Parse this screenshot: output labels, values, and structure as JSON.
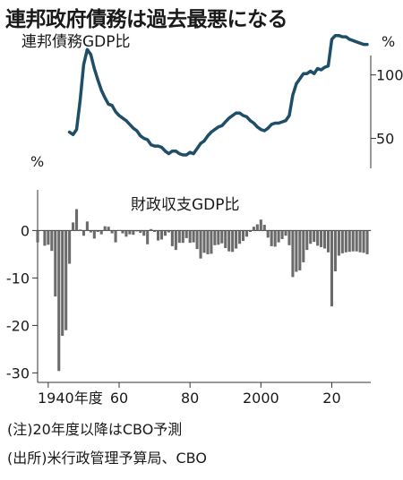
{
  "headline": "連邦政府債務は過去最悪になる",
  "notes": {
    "forecast": "(注)20年度以降はCBO予測",
    "source": "(出所)米行政管理予算局、CBO"
  },
  "colors": {
    "debt_line": "#1e4e68",
    "bars": "#6b6b6b",
    "axis": "#333333"
  },
  "chart_data": [
    {
      "type": "line",
      "title": "連邦債務GDP比",
      "ylabel": "%",
      "ylim": [
        25,
        135
      ],
      "yticks": [
        50,
        100
      ],
      "xlim": [
        1937,
        2031
      ],
      "grid": false,
      "series": [
        {
          "x": [
            1946,
            1947,
            1948,
            1949,
            1950,
            1951,
            1952,
            1953,
            1954,
            1955,
            1956,
            1957,
            1958,
            1959,
            1960,
            1961,
            1962,
            1963,
            1964,
            1965,
            1966,
            1967,
            1968,
            1969,
            1970,
            1971,
            1972,
            1973,
            1974,
            1975,
            1976,
            1977,
            1978,
            1979,
            1980,
            1981,
            1982,
            1983,
            1984,
            1985,
            1986,
            1987,
            1988,
            1989,
            1990,
            1991,
            1992,
            1993,
            1994,
            1995,
            1996,
            1997,
            1998,
            1999,
            2000,
            2001,
            2002,
            2003,
            2004,
            2005,
            2006,
            2007,
            2008,
            2009,
            2010,
            2011,
            2012,
            2013,
            2014,
            2015,
            2016,
            2017,
            2018,
            2019,
            2020,
            2021,
            2022,
            2023,
            2024,
            2025,
            2026,
            2027,
            2028,
            2029,
            2030
          ],
          "y": [
            55,
            53,
            57,
            80,
            108,
            120,
            116,
            105,
            96,
            88,
            82,
            77,
            76,
            71,
            68,
            66,
            64,
            61,
            58,
            56,
            52,
            50,
            49,
            45,
            44,
            44,
            43,
            40,
            38,
            40,
            40,
            38,
            37,
            37,
            39,
            38,
            42,
            46,
            48,
            52,
            55,
            57,
            59,
            60,
            63,
            66,
            68,
            70,
            70,
            68,
            67,
            64,
            62,
            59,
            57,
            56,
            58,
            61,
            62,
            62,
            63,
            64,
            68,
            84,
            93,
            97,
            101,
            101,
            103,
            101,
            105,
            104,
            106,
            107,
            128,
            131,
            131,
            130,
            130,
            128,
            127,
            126,
            125,
            124,
            124
          ]
        }
      ]
    },
    {
      "type": "bar",
      "title": "財政収支GDP比",
      "ylabel": "%",
      "ylim": [
        -32,
        8
      ],
      "yticks": [
        0,
        -10,
        -20,
        -30
      ],
      "xlim": [
        1937,
        2031
      ],
      "xticks": [
        {
          "value": 1940,
          "label": "1940年度"
        },
        {
          "value": 1960,
          "label": "60"
        },
        {
          "value": 1980,
          "label": "80"
        },
        {
          "value": 2000,
          "label": "2000"
        },
        {
          "value": 2020,
          "label": "20"
        }
      ],
      "grid": false,
      "x": [
        1937,
        1938,
        1939,
        1940,
        1941,
        1942,
        1943,
        1944,
        1945,
        1946,
        1947,
        1948,
        1949,
        1950,
        1951,
        1952,
        1953,
        1954,
        1955,
        1956,
        1957,
        1958,
        1959,
        1960,
        1961,
        1962,
        1963,
        1964,
        1965,
        1966,
        1967,
        1968,
        1969,
        1970,
        1971,
        1972,
        1973,
        1974,
        1975,
        1976,
        1977,
        1978,
        1979,
        1980,
        1981,
        1982,
        1983,
        1984,
        1985,
        1986,
        1987,
        1988,
        1989,
        1990,
        1991,
        1992,
        1993,
        1994,
        1995,
        1996,
        1997,
        1998,
        1999,
        2000,
        2001,
        2002,
        2003,
        2004,
        2005,
        2006,
        2007,
        2008,
        2009,
        2010,
        2011,
        2012,
        2013,
        2014,
        2015,
        2016,
        2017,
        2018,
        2019,
        2020,
        2021,
        2022,
        2023,
        2024,
        2025,
        2026,
        2027,
        2028,
        2029,
        2030
      ],
      "values": [
        -2.5,
        -0.1,
        -3.2,
        -3.0,
        -4.3,
        -13.9,
        -29.6,
        -22.2,
        -21.0,
        -7.0,
        1.7,
        4.5,
        0.2,
        -1.1,
        1.9,
        -0.4,
        -1.7,
        -0.3,
        -0.8,
        0.9,
        0.8,
        -0.6,
        -2.5,
        0.1,
        -0.6,
        -1.3,
        -0.8,
        -0.9,
        -0.2,
        -0.5,
        -1.1,
        -2.9,
        0.3,
        -0.3,
        -2.1,
        -1.9,
        -1.1,
        -0.4,
        -3.3,
        -4.1,
        -2.6,
        -2.6,
        -1.6,
        -2.6,
        -2.5,
        -3.9,
        -5.9,
        -4.7,
        -5.0,
        -4.9,
        -3.1,
        -3.0,
        -2.7,
        -3.7,
        -4.4,
        -4.5,
        -3.8,
        -2.8,
        -2.2,
        -1.3,
        -0.3,
        0.8,
        1.3,
        2.3,
        1.2,
        -1.5,
        -3.3,
        -3.4,
        -2.5,
        -1.8,
        -1.1,
        -3.1,
        -9.8,
        -8.7,
        -8.4,
        -6.7,
        -4.1,
        -2.8,
        -2.4,
        -3.2,
        -3.5,
        -3.8,
        -4.6,
        -16.0,
        -8.6,
        -5.3,
        -4.8,
        -4.6,
        -4.5,
        -4.4,
        -4.4,
        -4.6,
        -4.7,
        -5.0
      ]
    }
  ]
}
